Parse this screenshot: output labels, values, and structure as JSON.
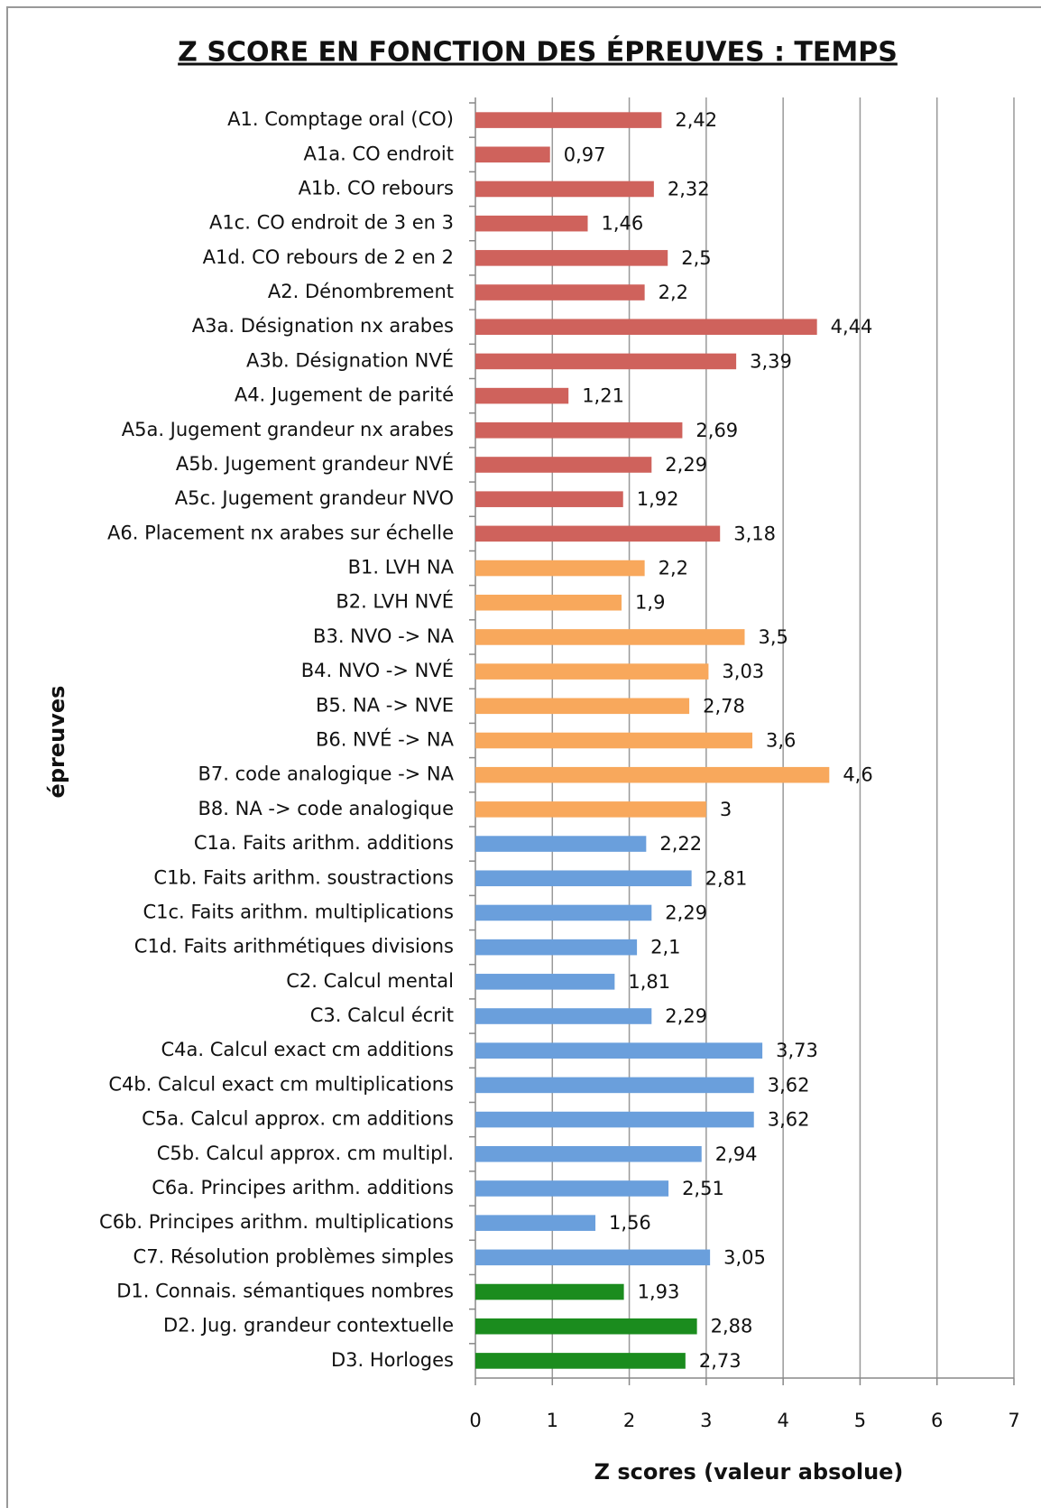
{
  "chart_data": {
    "type": "hbar",
    "title": "Z SCORE EN FONCTION DES ÉPREUVES : TEMPS",
    "xlabel": "Z scores (valeur absolue)",
    "ylabel": "épreuves",
    "categories": [
      "A1. Comptage oral (CO)",
      "A1a. CO endroit",
      "A1b. CO rebours",
      "A1c. CO endroit de 3 en 3",
      "A1d. CO rebours de 2 en 2",
      "A2. Dénombrement",
      "A3a. Désignation nx arabes",
      "A3b. Désignation NVÉ",
      "A4. Jugement de parité",
      "A5a. Jugement grandeur nx arabes",
      "A5b. Jugement grandeur NVÉ",
      "A5c. Jugement grandeur NVO",
      "A6. Placement nx arabes sur échelle",
      "B1. LVH NA",
      "B2. LVH NVÉ",
      "B3. NVO -> NA",
      "B4. NVO -> NVÉ",
      "B5. NA -> NVE",
      "B6. NVÉ -> NA",
      "B7. code analogique -> NA",
      "B8. NA -> code analogique",
      "C1a. Faits arithm. additions",
      "C1b. Faits arithm. soustractions",
      "C1c. Faits arithm. multiplications",
      "C1d. Faits arithmétiques divisions",
      "C2. Calcul mental",
      "C3. Calcul écrit",
      "C4a. Calcul exact cm additions",
      "C4b. Calcul exact cm multiplications",
      "C5a. Calcul approx. cm additions",
      "C5b. Calcul approx. cm multipl.",
      "C6a. Principes arithm. additions",
      "C6b. Principes arithm. multiplications",
      "C7. Résolution problèmes simples",
      "D1. Connais. sémantiques nombres",
      "D2. Jug. grandeur contextuelle",
      "D3. Horloges"
    ],
    "values": [
      2.42,
      0.97,
      2.32,
      1.46,
      2.5,
      2.2,
      4.44,
      3.39,
      1.21,
      2.69,
      2.29,
      1.92,
      3.18,
      2.2,
      1.9,
      3.5,
      3.03,
      2.78,
      3.6,
      4.6,
      3,
      2.22,
      2.81,
      2.29,
      2.1,
      1.81,
      2.29,
      3.73,
      3.62,
      3.62,
      2.94,
      2.51,
      1.56,
      3.05,
      1.93,
      2.88,
      2.73
    ],
    "value_labels": [
      "2,42",
      "0,97",
      "2,32",
      "1,46",
      "2,5",
      "2,2",
      "4,44",
      "3,39",
      "1,21",
      "2,69",
      "2,29",
      "1,92",
      "3,18",
      "2,2",
      "1,9",
      "3,5",
      "3,03",
      "2,78",
      "3,6",
      "4,6",
      "3",
      "2,22",
      "2,81",
      "2,29",
      "2,1",
      "1,81",
      "2,29",
      "3,73",
      "3,62",
      "3,62",
      "2,94",
      "2,51",
      "1,56",
      "3,05",
      "1,93",
      "2,88",
      "2,73"
    ],
    "colors": [
      "#cf625c",
      "#cf625c",
      "#cf625c",
      "#cf625c",
      "#cf625c",
      "#cf625c",
      "#cf625c",
      "#cf625c",
      "#cf625c",
      "#cf625c",
      "#cf625c",
      "#cf625c",
      "#cf625c",
      "#f8a85c",
      "#f8a85c",
      "#f8a85c",
      "#f8a85c",
      "#f8a85c",
      "#f8a85c",
      "#f8a85c",
      "#f8a85c",
      "#6a9fdc",
      "#6a9fdc",
      "#6a9fdc",
      "#6a9fdc",
      "#6a9fdc",
      "#6a9fdc",
      "#6a9fdc",
      "#6a9fdc",
      "#6a9fdc",
      "#6a9fdc",
      "#6a9fdc",
      "#6a9fdc",
      "#6a9fdc",
      "#1b8c1e",
      "#1b8c1e",
      "#1b8c1e"
    ],
    "xlim": [
      0,
      7
    ],
    "xticks": [
      0,
      1,
      2,
      3,
      4,
      5,
      6,
      7
    ],
    "grid": true
  }
}
